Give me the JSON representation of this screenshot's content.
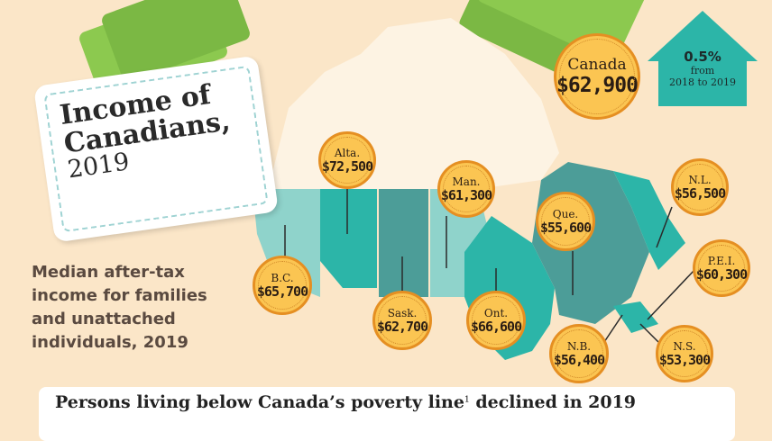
{
  "title": {
    "line1": "Income of",
    "line2": "Canadians,",
    "year": "2019"
  },
  "subtitle": "Median after-tax income for families and unattached individuals, 2019",
  "national": {
    "label": "Canada",
    "value": "$62,900"
  },
  "change": {
    "percent": "0.5%",
    "line1": "from",
    "line2": "2018 to 2019"
  },
  "provinces": [
    {
      "label": "Alta.",
      "value": "$72,500"
    },
    {
      "label": "Man.",
      "value": "$61,300"
    },
    {
      "label": "Que.",
      "value": "$55,600"
    },
    {
      "label": "N.L.",
      "value": "$56,500"
    },
    {
      "label": "B.C.",
      "value": "$65,700"
    },
    {
      "label": "Sask.",
      "value": "$62,700"
    },
    {
      "label": "Ont.",
      "value": "$66,600"
    },
    {
      "label": "P.E.I.",
      "value": "$60,300"
    },
    {
      "label": "N.B.",
      "value": "$56,400"
    },
    {
      "label": "N.S.",
      "value": "$53,300"
    }
  ],
  "banner": {
    "text": "Persons living below Canada’s poverty line",
    "footnote": "1",
    "text2": " declined in 2019"
  },
  "colors": {
    "coin": "#fbc552",
    "coin_border": "#e58f22",
    "teal": "#2cb5a8",
    "background": "#fbe6c8",
    "money": "#8cc94f"
  }
}
